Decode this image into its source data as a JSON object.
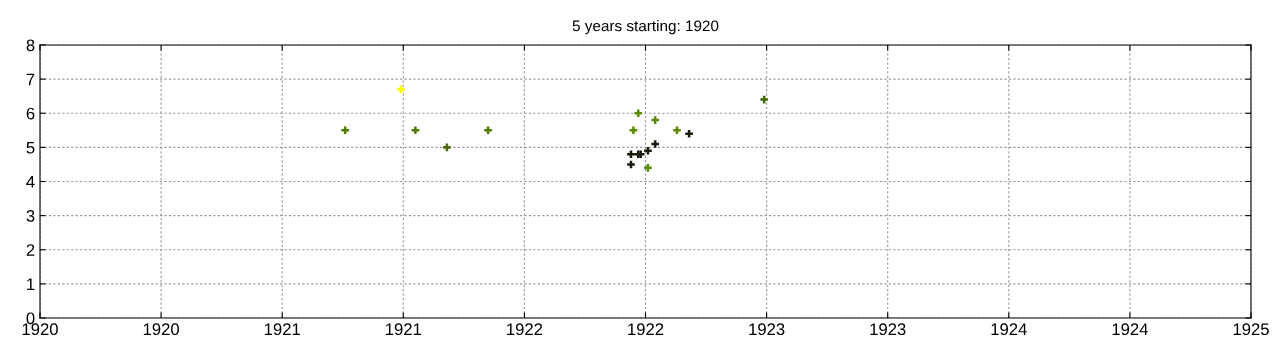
{
  "chart_data": {
    "type": "scatter",
    "title": "5 years starting: 1920",
    "x": [
      1921.26,
      1921.49,
      1921.55,
      1921.68,
      1921.85,
      1922.47,
      1922.54,
      1922.45,
      1922.63,
      1922.68,
      1922.54,
      1922.51,
      1922.44,
      1922.47,
      1922.48,
      1922.44,
      1922.51,
      1922.99
    ],
    "values": [
      5.5,
      6.7,
      5.5,
      5.0,
      5.5,
      6.0,
      5.8,
      5.5,
      5.5,
      5.4,
      5.1,
      4.9,
      4.8,
      4.8,
      4.8,
      4.5,
      4.4,
      6.4
    ],
    "colors": [
      "#4f7a00",
      "#ffff00",
      "#4f7a00",
      "#4a6a10",
      "#4f7a00",
      "#5a8a00",
      "#5a8a00",
      "#5a8a00",
      "#5a8a00",
      "#141c0a",
      "#141c0a",
      "#141c0a",
      "#141c0a",
      "#141c0a",
      "#141c0a",
      "#141c0a",
      "#5a8a00",
      "#3f6a00"
    ],
    "xlim": [
      1920,
      1925
    ],
    "xticks": [
      1920,
      {
        "value": 1920.5,
        "label": "1920"
      },
      1921,
      {
        "value": 1921.5,
        "label": "1921"
      },
      1922,
      {
        "value": 1922.5,
        "label": "1922"
      },
      1923,
      {
        "value": 1923.5,
        "label": "1923"
      },
      1924,
      {
        "value": 1924.5,
        "label": "1924"
      },
      1925
    ],
    "ylim": [
      0,
      8
    ],
    "yticks": [
      0,
      1,
      2,
      3,
      4,
      5,
      6,
      7,
      8
    ],
    "grid": true,
    "marker": "cross"
  }
}
